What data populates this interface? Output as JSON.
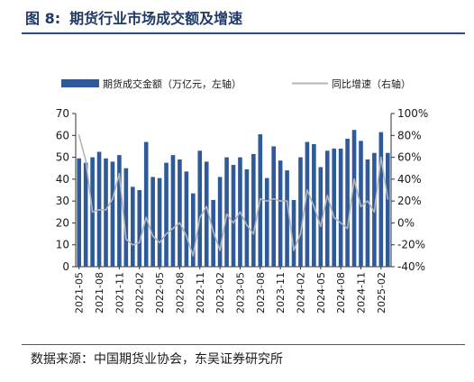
{
  "figure": {
    "number": "图 8:",
    "title": "期货行业市场成交额及增速"
  },
  "source": "数据来源：中国期货业协会，东吴证券研究所",
  "chart_data": {
    "type": "bar",
    "legend_position": "top",
    "grid": false,
    "x": [
      "2021-05",
      "2021-06",
      "2021-07",
      "2021-08",
      "2021-09",
      "2021-10",
      "2021-11",
      "2021-12",
      "2022-01",
      "2022-02",
      "2022-03",
      "2022-04",
      "2022-05",
      "2022-06",
      "2022-07",
      "2022-08",
      "2022-09",
      "2022-10",
      "2022-11",
      "2022-12",
      "2023-01",
      "2023-02",
      "2023-03",
      "2023-04",
      "2023-05",
      "2023-06",
      "2023-07",
      "2023-08",
      "2023-09",
      "2023-10",
      "2023-11",
      "2023-12",
      "2024-01",
      "2024-02",
      "2024-03",
      "2024-04",
      "2024-05",
      "2024-06",
      "2024-07",
      "2024-08",
      "2024-09",
      "2024-10",
      "2024-11",
      "2024-12",
      "2025-01",
      "2025-02",
      "2025-03"
    ],
    "tick_labels": [
      "2021-05",
      "2021-08",
      "2021-11",
      "2022-02",
      "2022-05",
      "2022-08",
      "2022-11",
      "2023-02",
      "2023-05",
      "2023-08",
      "2023-11",
      "2024-02",
      "2024-05",
      "2024-08",
      "2024-11",
      "2025-02"
    ],
    "series": [
      {
        "name": "期货成交金额（万亿元，左轴）",
        "kind": "bar",
        "axis": "left",
        "color": "#2e5a99",
        "values": [
          49.5,
          47.5,
          50.0,
          52.5,
          49.5,
          48.0,
          51.0,
          45.0,
          36.5,
          35.0,
          57.0,
          41.0,
          40.5,
          47.5,
          51.0,
          49.0,
          43.5,
          33.5,
          53.0,
          48.0,
          30.5,
          41.0,
          50.0,
          46.5,
          50.0,
          44.5,
          51.5,
          60.5,
          40.5,
          55.0,
          48.5,
          44.0,
          30.5,
          50.0,
          57.0,
          56.0,
          45.5,
          53.0,
          54.0,
          54.0,
          58.5,
          62.5,
          57.5,
          49.0,
          52.0,
          61.5,
          52.0
        ]
      },
      {
        "name": "同比增速（右轴）",
        "kind": "line",
        "axis": "right",
        "color": "#b4b4b4",
        "values": [
          80,
          57,
          10,
          12,
          12,
          22,
          45,
          -15,
          -20,
          -18,
          5,
          -12,
          -18,
          -10,
          -5,
          0,
          -12,
          -30,
          5,
          15,
          -8,
          -25,
          8,
          0,
          10,
          -2,
          -10,
          22,
          20,
          22,
          20,
          20,
          -25,
          -10,
          30,
          15,
          -3,
          25,
          5,
          0,
          -5,
          40,
          15,
          20,
          10,
          60,
          22
        ]
      }
    ],
    "left_axis": {
      "min": 0,
      "max": 70,
      "ticks": [
        "0",
        "10",
        "20",
        "30",
        "40",
        "50",
        "60",
        "70"
      ]
    },
    "right_axis": {
      "min": -40,
      "max": 100,
      "ticks": [
        "-40%",
        "-20%",
        "0%",
        "20%",
        "40%",
        "60%",
        "80%",
        "100%"
      ]
    }
  }
}
